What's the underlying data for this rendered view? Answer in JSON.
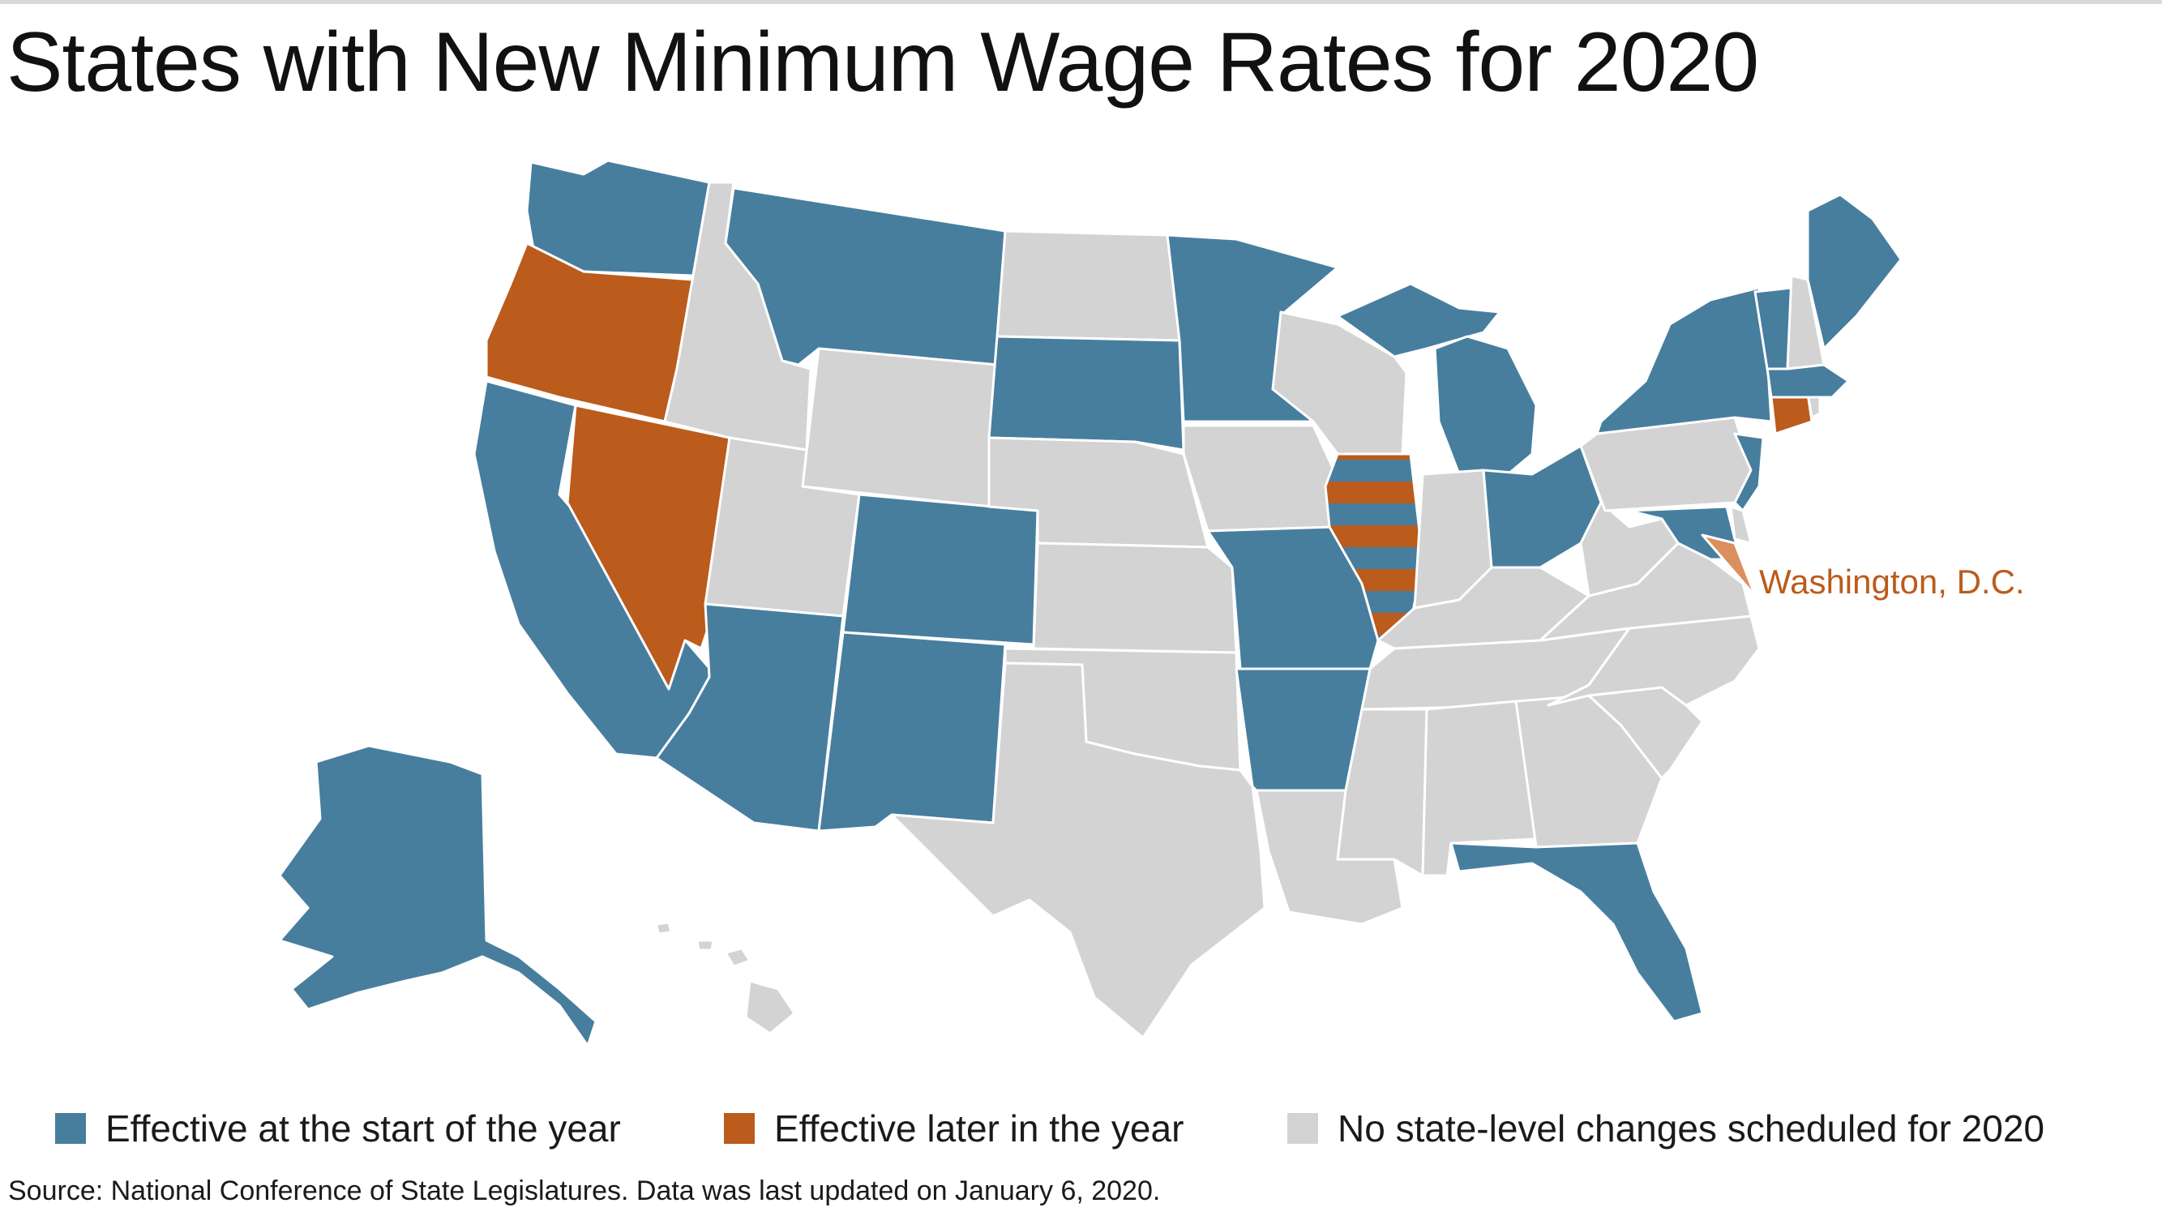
{
  "title": "States with New Minimum Wage Rates for 2020",
  "colors": {
    "start": "#477e9e",
    "later": "#bb5b1c",
    "none": "#d3d3d3",
    "dc": "#d9905e",
    "border": "#ffffff"
  },
  "map": {
    "callout_label": "Washington, D.C.",
    "states": [
      {
        "name": "Washington",
        "status": "start"
      },
      {
        "name": "Oregon",
        "status": "later"
      },
      {
        "name": "California",
        "status": "start"
      },
      {
        "name": "Nevada",
        "status": "later"
      },
      {
        "name": "Idaho",
        "status": "none"
      },
      {
        "name": "Montana",
        "status": "start"
      },
      {
        "name": "Wyoming",
        "status": "none"
      },
      {
        "name": "Utah",
        "status": "none"
      },
      {
        "name": "Arizona",
        "status": "start"
      },
      {
        "name": "Colorado",
        "status": "start"
      },
      {
        "name": "New Mexico",
        "status": "start"
      },
      {
        "name": "North Dakota",
        "status": "none"
      },
      {
        "name": "South Dakota",
        "status": "start"
      },
      {
        "name": "Nebraska",
        "status": "none"
      },
      {
        "name": "Kansas",
        "status": "none"
      },
      {
        "name": "Oklahoma",
        "status": "none"
      },
      {
        "name": "Texas",
        "status": "none"
      },
      {
        "name": "Minnesota",
        "status": "start"
      },
      {
        "name": "Iowa",
        "status": "none"
      },
      {
        "name": "Missouri",
        "status": "start"
      },
      {
        "name": "Arkansas",
        "status": "start"
      },
      {
        "name": "Louisiana",
        "status": "none"
      },
      {
        "name": "Wisconsin",
        "status": "none"
      },
      {
        "name": "Illinois",
        "status": "start+later"
      },
      {
        "name": "Michigan",
        "status": "start"
      },
      {
        "name": "Indiana",
        "status": "none"
      },
      {
        "name": "Ohio",
        "status": "start"
      },
      {
        "name": "Kentucky",
        "status": "none"
      },
      {
        "name": "Tennessee",
        "status": "none"
      },
      {
        "name": "Mississippi",
        "status": "none"
      },
      {
        "name": "Alabama",
        "status": "none"
      },
      {
        "name": "Georgia",
        "status": "none"
      },
      {
        "name": "Florida",
        "status": "start"
      },
      {
        "name": "South Carolina",
        "status": "none"
      },
      {
        "name": "North Carolina",
        "status": "none"
      },
      {
        "name": "Virginia",
        "status": "none"
      },
      {
        "name": "West Virginia",
        "status": "none"
      },
      {
        "name": "Pennsylvania",
        "status": "none"
      },
      {
        "name": "New York",
        "status": "start"
      },
      {
        "name": "New Jersey",
        "status": "start"
      },
      {
        "name": "Delaware",
        "status": "none"
      },
      {
        "name": "Maryland",
        "status": "start"
      },
      {
        "name": "Connecticut",
        "status": "later"
      },
      {
        "name": "Rhode Island",
        "status": "none"
      },
      {
        "name": "Massachusetts",
        "status": "start"
      },
      {
        "name": "Vermont",
        "status": "start"
      },
      {
        "name": "New Hampshire",
        "status": "none"
      },
      {
        "name": "Maine",
        "status": "start"
      },
      {
        "name": "Alaska",
        "status": "start"
      },
      {
        "name": "Hawaii",
        "status": "none"
      },
      {
        "name": "Washington, D.C.",
        "status": "later"
      }
    ]
  },
  "legend": {
    "start": "Effective at the start of the year",
    "later": "Effective later in the year",
    "none": "No state-level changes scheduled for 2020"
  },
  "source": "Source: National Conference of State Legislatures. Data was last updated on January 6, 2020."
}
